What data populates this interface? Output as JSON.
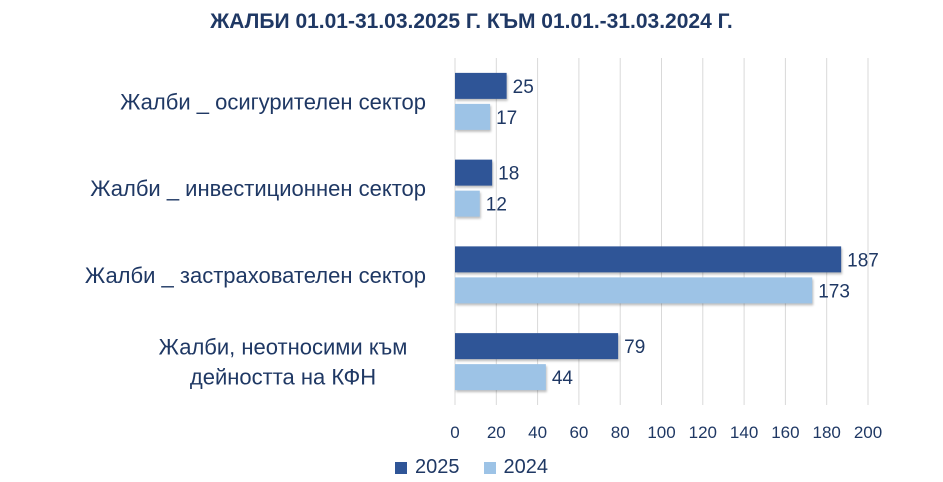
{
  "chart_data": {
    "type": "bar",
    "orientation": "horizontal",
    "title": "ЖАЛБИ 01.01-31.03.2025 Г. КЪМ 01.01.-31.03.2024 Г.",
    "categories": [
      "Жалби _ осигурителен сектор",
      "Жалби _ инвестиционнен сектор",
      "Жалби _ застрахователен сектор",
      "Жалби, неотносими към дейността на КФН"
    ],
    "category_label_lines": [
      [
        "Жалби _ осигурителен сектор"
      ],
      [
        "Жалби _ инвестиционнен сектор"
      ],
      [
        "Жалби _ застрахователен сектор"
      ],
      [
        "Жалби, неотносими към",
        "дейността на КФН"
      ]
    ],
    "series": [
      {
        "name": "2025",
        "color": "#2f5597",
        "values": [
          25,
          18,
          187,
          79
        ]
      },
      {
        "name": "2024",
        "color": "#9dc3e6",
        "values": [
          17,
          12,
          173,
          44
        ]
      }
    ],
    "xlim": [
      0,
      200
    ],
    "xticks": [
      0,
      20,
      40,
      60,
      80,
      100,
      120,
      140,
      160,
      180,
      200
    ],
    "grid": "vertical",
    "legend_position": "bottom"
  }
}
